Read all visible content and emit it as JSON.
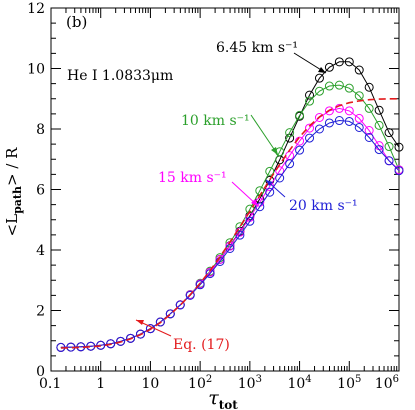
{
  "chart_data": {
    "type": "line",
    "panel_label": "(b)",
    "line_label": "He I 1.0833μm",
    "xlabel": "τ",
    "xlabel_sub": "tot",
    "ylabel": "<L",
    "ylabel_sub": "path",
    "ylabel_tail": "> / R",
    "xscale": "log",
    "xlim": [
      0.1,
      1000000
    ],
    "ylim": [
      0,
      12
    ],
    "grid": false,
    "x_ticks": [
      {
        "v": 0.1,
        "label": "0.1"
      },
      {
        "v": 1,
        "label": "1"
      },
      {
        "v": 10,
        "label": "10"
      },
      {
        "v": 100,
        "label": "10",
        "exp": "2"
      },
      {
        "v": 1000,
        "label": "10",
        "exp": "3"
      },
      {
        "v": 10000,
        "label": "10",
        "exp": "4"
      },
      {
        "v": 100000,
        "label": "10",
        "exp": "5"
      },
      {
        "v": 1000000,
        "label": "10",
        "exp": "6"
      }
    ],
    "y_ticks": [
      0,
      2,
      4,
      6,
      8,
      10,
      12
    ],
    "x": [
      0.158,
      0.251,
      0.398,
      0.631,
      1.0,
      1.585,
      2.512,
      3.981,
      6.31,
      10.0,
      15.85,
      25.12,
      39.81,
      63.1,
      100.0,
      158.5,
      251.2,
      398.1,
      631.0,
      1000.0,
      1585.0,
      2512.0,
      3981.0,
      6310.0,
      10000.0,
      15850.0,
      25120.0,
      39810.0,
      63100.0,
      100000.0,
      158500.0,
      251200.0,
      398100.0,
      631000.0,
      1000000.0
    ],
    "series": [
      {
        "name": "6.45 km s⁻¹",
        "color": "#000000",
        "values": [
          0.78,
          0.79,
          0.8,
          0.82,
          0.85,
          0.9,
          0.98,
          1.08,
          1.22,
          1.4,
          1.62,
          1.89,
          2.19,
          2.52,
          2.88,
          3.27,
          3.69,
          4.14,
          4.62,
          5.13,
          5.69,
          6.3,
          6.98,
          7.7,
          8.42,
          9.12,
          9.68,
          10.04,
          10.22,
          10.22,
          9.95,
          9.38,
          8.62,
          7.88,
          7.4
        ]
      },
      {
        "name": "10 km s⁻¹",
        "color": "#2ca02c",
        "values": [
          0.78,
          0.79,
          0.8,
          0.82,
          0.85,
          0.9,
          0.98,
          1.08,
          1.22,
          1.4,
          1.62,
          1.89,
          2.19,
          2.53,
          2.9,
          3.3,
          3.75,
          4.24,
          4.77,
          5.35,
          5.96,
          6.6,
          7.25,
          7.88,
          8.45,
          8.92,
          9.25,
          9.42,
          9.45,
          9.35,
          9.1,
          8.68,
          8.12,
          7.42,
          6.65
        ]
      },
      {
        "name": "15 km s⁻¹",
        "color": "#ff00ff",
        "values": [
          0.78,
          0.79,
          0.8,
          0.82,
          0.85,
          0.9,
          0.98,
          1.08,
          1.22,
          1.4,
          1.62,
          1.89,
          2.19,
          2.52,
          2.88,
          3.27,
          3.69,
          4.13,
          4.59,
          5.08,
          5.58,
          6.1,
          6.62,
          7.12,
          7.6,
          8.03,
          8.38,
          8.6,
          8.68,
          8.6,
          8.35,
          7.95,
          7.45,
          6.95,
          6.65
        ]
      },
      {
        "name": "20 km s⁻¹",
        "color": "#1f1fd6",
        "values": [
          0.78,
          0.79,
          0.8,
          0.82,
          0.85,
          0.9,
          0.98,
          1.08,
          1.22,
          1.4,
          1.62,
          1.89,
          2.18,
          2.5,
          2.85,
          3.22,
          3.62,
          4.05,
          4.49,
          4.95,
          5.43,
          5.91,
          6.38,
          6.85,
          7.3,
          7.7,
          8.0,
          8.2,
          8.28,
          8.25,
          8.05,
          7.72,
          7.32,
          6.95,
          6.62
        ]
      },
      {
        "name": "Eq. (17)",
        "color": "#e31a1c",
        "dashed": true,
        "values": [
          0.76,
          0.77,
          0.78,
          0.8,
          0.83,
          0.88,
          0.96,
          1.06,
          1.2,
          1.38,
          1.6,
          1.87,
          2.18,
          2.52,
          2.9,
          3.32,
          3.78,
          4.26,
          4.76,
          5.28,
          5.8,
          6.32,
          6.83,
          7.3,
          7.74,
          8.1,
          8.4,
          8.62,
          8.77,
          8.87,
          8.93,
          8.97,
          8.99,
          9.0,
          9.0
        ]
      }
    ]
  }
}
